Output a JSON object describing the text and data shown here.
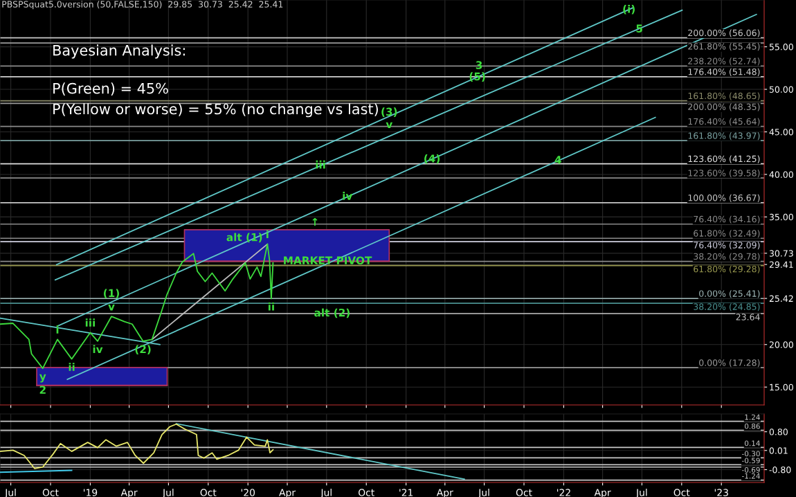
{
  "chart_data": [
    {
      "type": "line",
      "title": "PBSPSquat5.0version (50,FALSE,150)  29.85  30.73  25.42  25.41",
      "xlim": [
        "2018-06-06",
        "2023-04-10"
      ],
      "xticks": [
        {
          "value": "2018-07-01",
          "label": null
        },
        {
          "value": "2018-10-01",
          "label": null
        },
        {
          "value": "2019-01-01",
          "label": null
        },
        {
          "value": "2019-04-01",
          "label": null
        },
        {
          "value": "2019-07-01",
          "label": null
        },
        {
          "value": "2019-10-01",
          "label": null
        },
        {
          "value": "2020-01-01",
          "label": null
        },
        {
          "value": "2020-04-01",
          "label": null
        },
        {
          "value": "2020-07-01",
          "label": null
        },
        {
          "value": "2020-10-01",
          "label": null
        },
        {
          "value": "2021-01-01",
          "label": null
        },
        {
          "value": "2021-04-01",
          "label": null
        },
        {
          "value": "2021-07-01",
          "label": null
        },
        {
          "value": "2021-10-01",
          "label": null
        },
        {
          "value": "2022-01-01",
          "label": null
        },
        {
          "value": "2022-04-01",
          "label": null
        },
        {
          "value": "2022-07-01",
          "label": null
        },
        {
          "value": "2022-10-01",
          "label": null
        },
        {
          "value": "2023-01-01",
          "label": null
        }
      ],
      "ylim": [
        12.9,
        60.5
      ],
      "yticks": [
        {
          "value": 15,
          "label": "15.00"
        },
        {
          "value": 20,
          "label": "20.00"
        },
        {
          "value": 25.42,
          "label": "25.42"
        },
        {
          "value": 29.41,
          "label": "29.41"
        },
        {
          "value": 30.73,
          "label": "30.73"
        },
        {
          "value": 35,
          "label": "35.00"
        },
        {
          "value": 40,
          "label": "40.00"
        },
        {
          "value": 45,
          "label": "45.00"
        },
        {
          "value": 50,
          "label": "50.00"
        },
        {
          "value": 55,
          "label": "55.00"
        }
      ],
      "tick_labels": "y",
      "grid": true,
      "series": [
        {
          "type": "line",
          "color": "#b03060",
          "x": [
            "2019-08-07",
            "2020-11-23"
          ],
          "values": [
            29.8,
            29.8
          ],
          "lower": [
            29.8,
            29.8
          ],
          "upper": [
            33.5,
            33.5
          ]
        },
        {
          "type": "line",
          "color": "#b03060",
          "x": [
            "2018-08-30",
            "2019-06-28"
          ],
          "values": [
            15.2,
            15.2
          ],
          "lower": [
            15.2,
            15.2
          ],
          "upper": [
            17.3,
            17.3
          ]
        },
        {
          "type": "line",
          "color": "#5fc8c8",
          "x": [
            "2018-10-15",
            "2022-06-11"
          ],
          "values": [
            29.4,
            59.6
          ]
        },
        {
          "type": "line",
          "color": "#5fc8c8",
          "x": [
            "2018-10-12",
            "2022-10-02"
          ],
          "values": [
            27.6,
            59.3
          ]
        },
        {
          "type": "line",
          "color": "#5fc8c8",
          "x": [
            "2018-10-18",
            "2023-03-23"
          ],
          "values": [
            22.2,
            58.8
          ]
        },
        {
          "type": "line",
          "color": "#5fc8c8",
          "x": [
            "2018-11-09",
            "2022-08-01"
          ],
          "values": [
            15.9,
            46.7
          ]
        },
        {
          "type": "line",
          "color": "#5fc8c8",
          "x": [
            "2018-06-06",
            "2019-06-11"
          ],
          "values": [
            23.1,
            20.0
          ]
        },
        {
          "type": "line",
          "color": "#bbbbbb",
          "x": [
            "2019-05-24",
            "2020-02-15"
          ],
          "values": [
            20.6,
            31.8
          ]
        },
        {
          "type": "line",
          "color": "#3ddc3d",
          "x": [
            "2018-06-06",
            "2018-07-06",
            "2018-08-12",
            "2018-08-18",
            "2018-09-13",
            "2018-10-17",
            "2018-11-19",
            "2019-01-01",
            "2019-01-18",
            "2019-02-19",
            "2019-03-21",
            "2019-04-08",
            "2019-05-03",
            "2019-05-24",
            "2019-06-15",
            "2019-06-27",
            "2019-07-19",
            "2019-08-02",
            "2019-08-28",
            "2019-09-06",
            "2019-09-24",
            "2019-10-10",
            "2019-11-09",
            "2019-11-27",
            "2019-12-26",
            "2020-01-06",
            "2020-01-22",
            "2020-01-31",
            "2020-02-15",
            "2020-02-20",
            "2020-02-24",
            "2020-02-28"
          ],
          "values": [
            22.4,
            22.5,
            20.6,
            18.9,
            17.2,
            20.6,
            18.3,
            21.4,
            20.4,
            23.3,
            22.7,
            22.4,
            20.4,
            20.6,
            23.9,
            25.8,
            28.4,
            29.7,
            30.7,
            28.6,
            27.4,
            28.4,
            26.3,
            27.7,
            29.6,
            27.7,
            29.1,
            28.0,
            31.8,
            29.9,
            25.4,
            29.6
          ]
        }
      ],
      "ref_lines": [
        {
          "axis": "y",
          "value": 56.06,
          "label": "200.00% (56.06)",
          "color": "#c8c8c8"
        },
        {
          "axis": "y",
          "value": 55.45,
          "label": "261.80% (55.45)",
          "color": "#9a9a9a"
        },
        {
          "axis": "y",
          "value": 52.74,
          "label": "238.20% (52.74)",
          "color": "#8a8a8a"
        },
        {
          "axis": "y",
          "value": 51.48,
          "label": "176.40% (51.48)",
          "color": "#d0d0d0"
        },
        {
          "axis": "y",
          "value": 48.65,
          "label": "161.80% (48.65)",
          "color": "#8a8a6a"
        },
        {
          "axis": "y",
          "value": 48.35,
          "label": "200.00% (48.35)",
          "color": "#9a9a9a"
        },
        {
          "axis": "y",
          "value": 45.64,
          "label": "176.40% (45.64)",
          "color": "#8a8a8a"
        },
        {
          "axis": "y",
          "value": 43.97,
          "label": "161.80% (43.97)",
          "color": "#7aa0a0"
        },
        {
          "axis": "y",
          "value": 41.25,
          "label": "123.60% (41.25)",
          "color": "#e0e0e0"
        },
        {
          "axis": "y",
          "value": 39.58,
          "label": "123.60% (39.58)",
          "color": "#8a8a8a"
        },
        {
          "axis": "y",
          "value": 36.67,
          "label": "100.00% (36.67)",
          "color": "#c8c8c8"
        },
        {
          "axis": "y",
          "value": 34.16,
          "label": "76.40% (34.16)",
          "color": "#8a8a8a"
        },
        {
          "axis": "y",
          "value": 32.49,
          "label": "61.80% (32.49)",
          "color": "#8a8a8a"
        },
        {
          "axis": "y",
          "value": 32.09,
          "label": "76.40% (32.09)",
          "color": "#d0d0e0"
        },
        {
          "axis": "y",
          "value": 29.78,
          "label": "38.20% (29.78)",
          "color": "#8a8a8a"
        },
        {
          "axis": "y",
          "value": 29.28,
          "label": "61.80% (29.28)",
          "color": "#9a9a50"
        },
        {
          "axis": "y",
          "value": 25.41,
          "label": "0.00% (25.41)",
          "color": "#a0b8b8"
        },
        {
          "axis": "y",
          "value": 24.85,
          "label": "38.20% (24.85)",
          "color": "#4a9090"
        },
        {
          "axis": "y",
          "value": 23.64,
          "label": "23.64",
          "color": "#c8c8c8"
        },
        {
          "axis": "y",
          "value": 17.28,
          "label": "0.00% (17.28)",
          "color": "#9a9a9a"
        }
      ],
      "annotations": [
        "Bayesian Analysis:",
        "P(Green) = 45%",
        "P(Yellow or worse) = 55% (no change vs last)",
        {
          "text": "y",
          "x": "2018-09-13",
          "y": 17.2
        },
        {
          "text": "2",
          "x": "2018-09-13",
          "y": 17.2
        },
        {
          "text": "i",
          "x": "2018-10-17",
          "y": 20.6
        },
        {
          "text": "ii",
          "x": "2018-11-19",
          "y": 18.3
        },
        {
          "text": "iii",
          "x": "2019-01-01",
          "y": 21.4
        },
        {
          "text": "iv",
          "x": "2019-01-18",
          "y": 20.4
        },
        {
          "text": "v",
          "x": "2019-02-19",
          "y": 23.3
        },
        {
          "text": "(1)",
          "x": "2019-02-19",
          "y": 23.3
        },
        {
          "text": "(2)",
          "x": "2019-05-03",
          "y": 20.4
        },
        {
          "text": "alt (1)",
          "x": "2019-12-24",
          "y": 32.51
        },
        {
          "text": "i",
          "x": "2020-02-15",
          "y": 31.8
        },
        {
          "text": "MARKET PIVOT",
          "x": "2020-07-03",
          "y": 29.78
        },
        {
          "text": "ii",
          "x": "2020-02-24",
          "y": 25.4
        },
        {
          "text": "alt (2)",
          "x": "2020-07-14",
          "y": 23.64
        },
        {
          "text": "iv",
          "x": "2020-08-18",
          "y": 37.35
        },
        {
          "text": "↑",
          "x": "2020-06-04",
          "y": 34.31
        },
        {
          "text": "iii",
          "x": "2020-06-17",
          "y": 41.04
        },
        {
          "text": "(3)",
          "x": "2020-11-23",
          "y": 47.26
        },
        {
          "text": "v",
          "x": "2020-11-23",
          "y": 45.79
        },
        {
          "text": "(4)",
          "x": "2021-03-02",
          "y": 41.76
        },
        {
          "text": "3",
          "x": "2021-06-19",
          "y": 52.74
        },
        {
          "text": "(5)",
          "x": "2021-06-15",
          "y": 51.41
        },
        {
          "text": "4",
          "x": "2021-12-19",
          "y": 41.6
        },
        {
          "text": "(i)",
          "x": "2022-06-01",
          "y": 59.33
        },
        {
          "text": "5",
          "x": "2022-06-25",
          "y": 57.04
        }
      ]
    },
    {
      "type": "line",
      "xlim": [
        "2018-06-06",
        "2023-04-10"
      ],
      "xticks": [
        {
          "value": "2018-07-01",
          "label": "Jul"
        },
        {
          "value": "2018-10-01",
          "label": "Oct"
        },
        {
          "value": "2019-01-01",
          "label": "'19"
        },
        {
          "value": "2019-04-01",
          "label": "Apr"
        },
        {
          "value": "2019-07-01",
          "label": "Jul"
        },
        {
          "value": "2019-10-01",
          "label": "Oct"
        },
        {
          "value": "2020-01-01",
          "label": "'20"
        },
        {
          "value": "2020-04-01",
          "label": "Apr"
        },
        {
          "value": "2020-07-01",
          "label": "Jul"
        },
        {
          "value": "2020-10-01",
          "label": "Oct"
        },
        {
          "value": "2021-01-01",
          "label": "'21"
        },
        {
          "value": "2021-04-01",
          "label": "Apr"
        },
        {
          "value": "2021-07-01",
          "label": "Jul"
        },
        {
          "value": "2021-10-01",
          "label": "Oct"
        },
        {
          "value": "2022-01-01",
          "label": "'22"
        },
        {
          "value": "2022-04-01",
          "label": "Apr"
        },
        {
          "value": "2022-07-01",
          "label": "Jul"
        },
        {
          "value": "2022-10-01",
          "label": "Oct"
        },
        {
          "value": "2023-01-01",
          "label": "'23"
        }
      ],
      "ylim": [
        -1.34,
        1.55
      ],
      "yticks": [
        {
          "value": -0.8,
          "label": "-0.80"
        },
        {
          "value": 0.01,
          "label": "0.01"
        },
        {
          "value": 0.8,
          "label": "0.80"
        }
      ],
      "grid": true,
      "series": [
        {
          "type": "line",
          "color": "#40c8e8",
          "x": [
            "2018-06-06",
            "2018-11-19"
          ],
          "values": [
            -0.91,
            -0.83
          ]
        },
        {
          "type": "line",
          "color": "#5fc8c8",
          "x": [
            "2019-07-19",
            "2021-05-16"
          ],
          "values": [
            1.14,
            -1.2
          ]
        },
        {
          "type": "line",
          "color": "#e8e86a",
          "x": [
            "2018-06-06",
            "2018-07-06",
            "2018-08-01",
            "2018-08-25",
            "2018-09-13",
            "2018-10-07",
            "2018-10-24",
            "2018-11-19",
            "2018-12-26",
            "2019-01-18",
            "2019-02-06",
            "2019-03-02",
            "2019-03-28",
            "2019-04-15",
            "2019-05-04",
            "2019-05-28",
            "2019-06-16",
            "2019-07-04",
            "2019-07-19",
            "2019-08-09",
            "2019-09-04",
            "2019-09-08",
            "2019-09-21",
            "2019-10-10",
            "2019-10-21",
            "2019-11-16",
            "2019-12-10",
            "2019-12-29",
            "2020-01-16",
            "2020-02-10",
            "2020-02-15",
            "2020-02-21",
            "2020-02-28"
          ],
          "values": [
            -0.03,
            0.02,
            -0.2,
            -0.75,
            -0.69,
            -0.14,
            0.3,
            -0.03,
            0.35,
            0.13,
            0.46,
            0.19,
            0.35,
            -0.2,
            -0.53,
            -0.09,
            0.68,
            1.01,
            1.12,
            0.9,
            0.68,
            -0.2,
            -0.31,
            -0.09,
            -0.36,
            -0.2,
            0.02,
            0.57,
            0.24,
            0.19,
            0.46,
            -0.09,
            0.04
          ]
        }
      ],
      "ref_lines": [
        {
          "axis": "y",
          "value": 1.24,
          "label": "1.24",
          "color": "#c8c8c8"
        },
        {
          "axis": "y",
          "value": 0.86,
          "label": "0.86",
          "color": "#c8c8c8"
        },
        {
          "axis": "y",
          "value": 0.14,
          "label": "0.14",
          "color": "#c8c8c8"
        },
        {
          "axis": "y",
          "value": -0.3,
          "label": "-0.30",
          "color": "#c8c8c8"
        },
        {
          "axis": "y",
          "value": -0.59,
          "label": "-0.59",
          "color": "#c8c8c8"
        },
        {
          "axis": "y",
          "value": -0.69,
          "label": "-0.69",
          "color": "#c8c8c8"
        },
        {
          "axis": "y",
          "value": -1.24,
          "label": "-1.24",
          "color": "#c8c8c8"
        }
      ]
    }
  ]
}
